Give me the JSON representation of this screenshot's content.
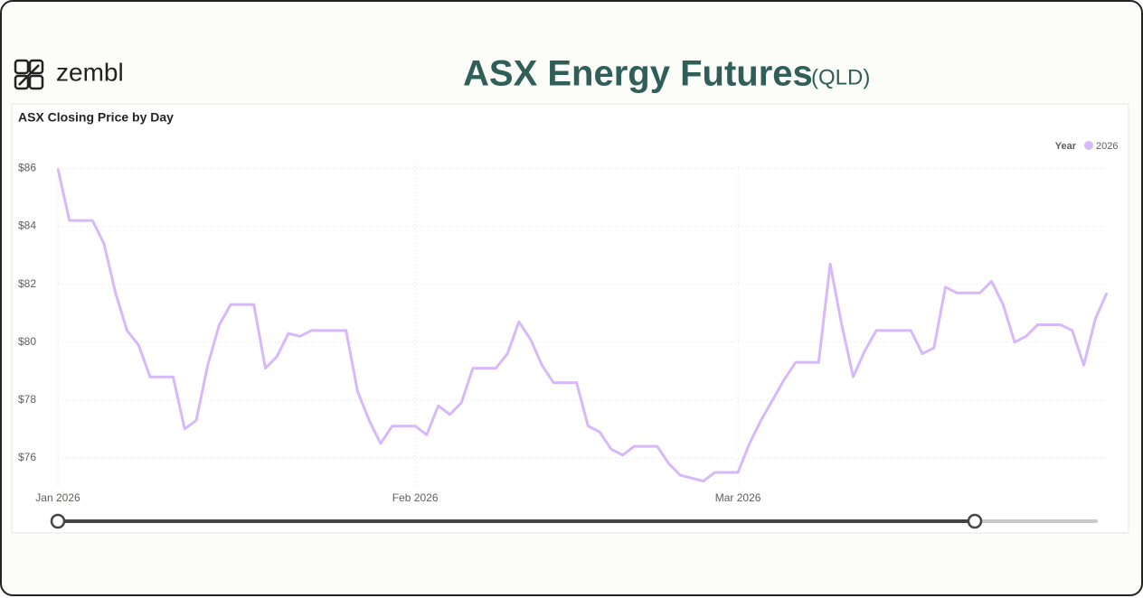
{
  "header": {
    "brand": "zembl",
    "title": "ASX Energy Futures",
    "title_suffix": "(QLD)"
  },
  "chart_data": {
    "type": "line",
    "title": "ASX Closing Price by Day",
    "legend_title": "Year",
    "x": [
      0,
      1,
      3,
      4,
      5,
      6,
      7,
      8,
      10,
      11,
      12,
      13,
      14,
      15,
      17,
      18,
      19,
      20,
      21,
      22,
      25,
      26,
      27,
      28,
      29,
      31,
      32,
      33,
      34,
      35,
      36,
      38,
      39,
      40,
      41,
      42,
      43,
      45,
      46,
      47,
      48,
      49,
      50,
      52,
      53,
      54,
      55,
      56,
      57,
      59,
      60,
      61,
      62,
      63,
      64,
      66,
      67,
      68,
      69,
      70,
      71,
      74,
      75,
      76,
      77,
      78,
      80,
      81,
      82,
      83,
      84,
      85,
      87,
      88,
      89,
      90,
      91
    ],
    "series": [
      {
        "name": "2026",
        "color": "#d7b9fa",
        "values": [
          86.0,
          84.2,
          84.2,
          83.4,
          81.7,
          80.4,
          79.9,
          78.8,
          78.8,
          77.0,
          77.3,
          79.2,
          80.6,
          81.3,
          81.3,
          79.1,
          79.5,
          80.3,
          80.2,
          80.4,
          80.4,
          78.3,
          77.3,
          76.5,
          77.1,
          77.1,
          76.8,
          77.8,
          77.5,
          77.9,
          79.1,
          79.1,
          79.6,
          80.7,
          80.1,
          79.2,
          78.6,
          78.6,
          77.1,
          76.9,
          76.3,
          76.1,
          76.4,
          76.4,
          75.8,
          75.4,
          75.3,
          75.2,
          75.5,
          75.5,
          76.5,
          77.3,
          78.0,
          78.7,
          79.3,
          79.3,
          82.7,
          80.6,
          78.8,
          79.7,
          80.4,
          80.4,
          79.6,
          79.8,
          81.9,
          81.7,
          81.7,
          82.1,
          81.3,
          80.0,
          80.2,
          80.6,
          80.6,
          80.4,
          79.2,
          80.8,
          81.7
        ]
      }
    ],
    "xlim": [
      0,
      91
    ],
    "xticks": [
      {
        "value": 0,
        "label": "Jan 2026"
      },
      {
        "value": 31,
        "label": "Feb 2026"
      },
      {
        "value": 59,
        "label": "Mar 2026"
      }
    ],
    "ylim": [
      75,
      86.2
    ],
    "yticks": [
      {
        "value": 76,
        "label": "$76"
      },
      {
        "value": 78,
        "label": "$78"
      },
      {
        "value": 80,
        "label": "$80"
      },
      {
        "value": 82,
        "label": "$82"
      },
      {
        "value": 84,
        "label": "$84"
      },
      {
        "value": 86,
        "label": "$86"
      }
    ],
    "grid": true
  }
}
